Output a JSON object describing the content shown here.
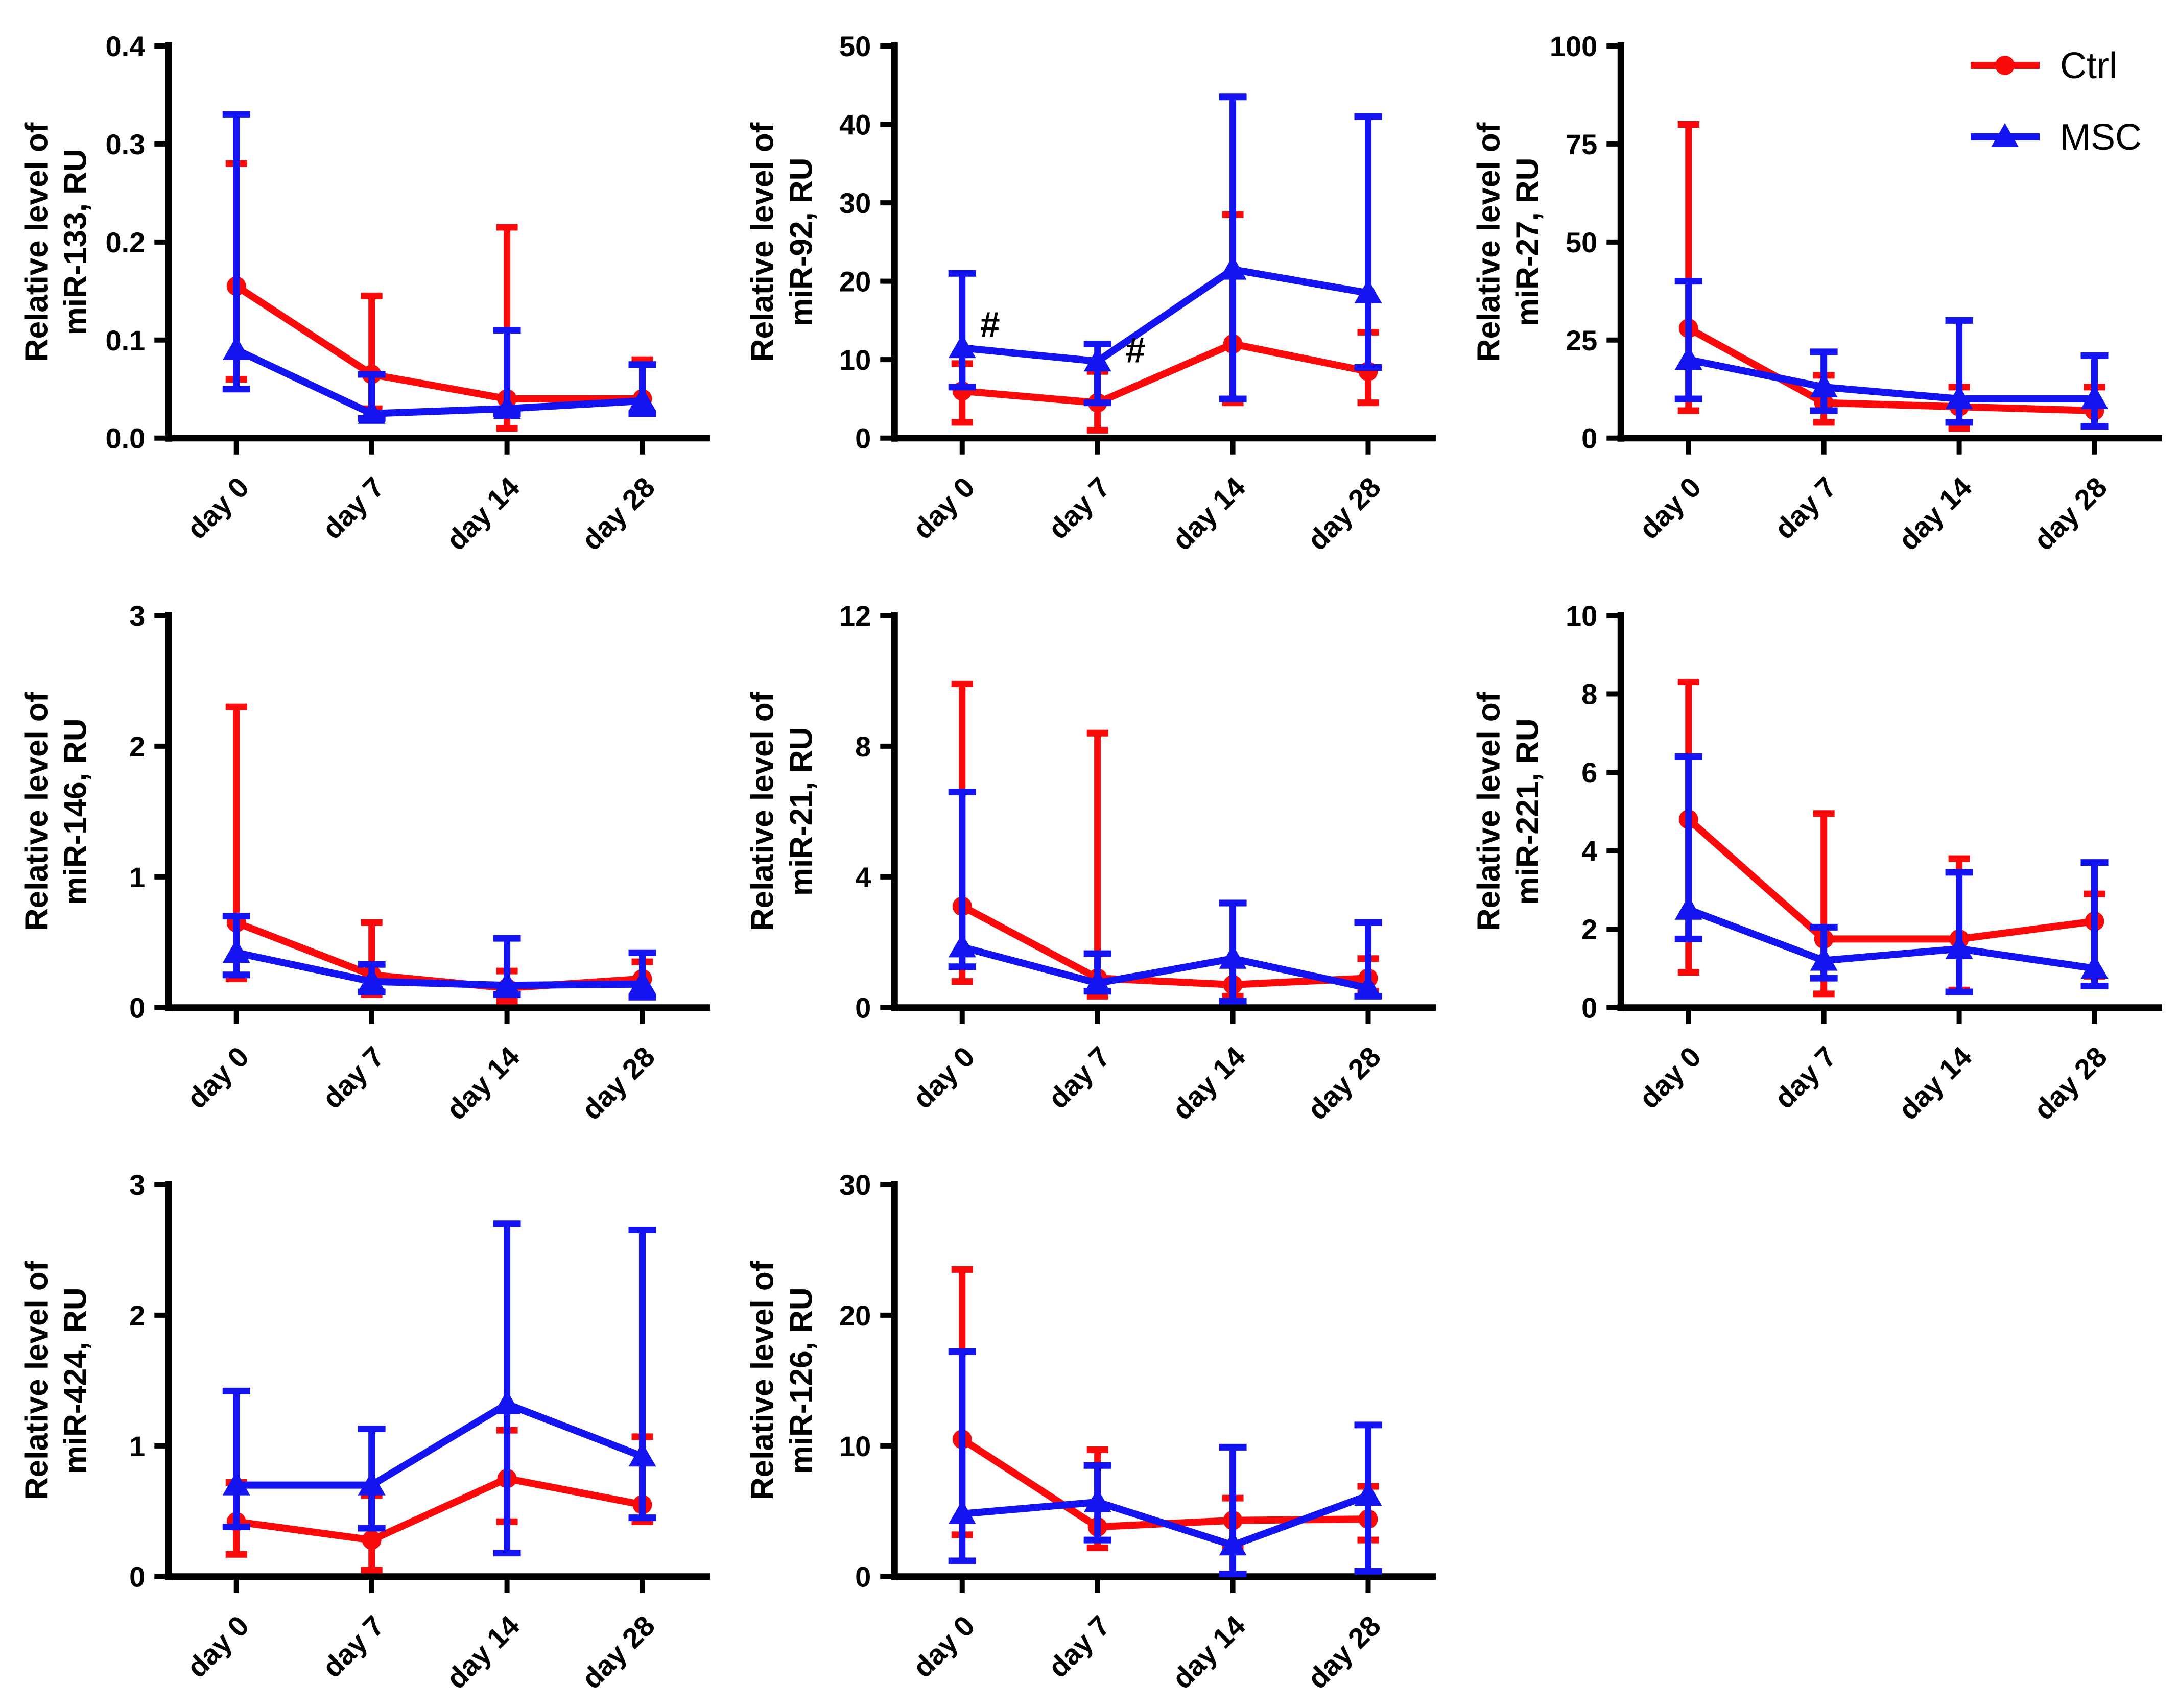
{
  "figure": {
    "background": "#ffffff",
    "rows": 3,
    "cols": 3
  },
  "colors": {
    "ctrl": "#fa0a0a",
    "msc": "#1414f0",
    "axis": "#000000",
    "annotation": "#000000"
  },
  "legend": {
    "location": "top-right of miR-27 panel",
    "items": [
      {
        "label": "Ctrl",
        "marker": "circle",
        "color_key": "ctrl"
      },
      {
        "label": "MSC",
        "marker": "triangle",
        "color_key": "msc"
      }
    ]
  },
  "categories": [
    "day 0",
    "day 7",
    "day 14",
    "day 28"
  ],
  "chart_data": [
    {
      "type": "line",
      "name": "miR-133",
      "ylabel_lines": [
        "Relative level of",
        "miR-133, RU"
      ],
      "ylim": [
        0,
        0.4
      ],
      "yticks": [
        0,
        0.1,
        0.2,
        0.3,
        0.4
      ],
      "ytick_labels": [
        "0.0",
        "0.1",
        "0.2",
        "0.3",
        "0.4"
      ],
      "legend": false,
      "series": [
        {
          "name": "Ctrl",
          "marker": "circle",
          "values": [
            0.155,
            0.065,
            0.04,
            0.04
          ],
          "err_lo": [
            0.06,
            0.03,
            0.01,
            0.03
          ],
          "err_hi": [
            0.28,
            0.145,
            0.215,
            0.08
          ]
        },
        {
          "name": "MSC",
          "marker": "triangle",
          "values": [
            0.09,
            0.025,
            0.03,
            0.038
          ],
          "err_lo": [
            0.05,
            0.02,
            0.025,
            0.025
          ],
          "err_hi": [
            0.33,
            0.065,
            0.11,
            0.075
          ]
        }
      ],
      "annotations": []
    },
    {
      "type": "line",
      "name": "miR-92",
      "ylabel_lines": [
        "Relative level of",
        "miR-92, RU"
      ],
      "ylim": [
        0,
        50
      ],
      "yticks": [
        0,
        10,
        20,
        30,
        40,
        50
      ],
      "ytick_labels": [
        "0",
        "10",
        "20",
        "30",
        "40",
        "50"
      ],
      "legend": false,
      "series": [
        {
          "name": "Ctrl",
          "marker": "circle",
          "values": [
            6,
            4.5,
            12,
            8.5
          ],
          "err_lo": [
            2,
            1,
            4.5,
            4.5
          ],
          "err_hi": [
            9.5,
            8.5,
            28.5,
            13.5
          ]
        },
        {
          "name": "MSC",
          "marker": "triangle",
          "values": [
            11.5,
            9.8,
            21.5,
            18.5
          ],
          "err_lo": [
            6.5,
            4.5,
            5,
            9
          ],
          "err_hi": [
            21,
            12,
            43.5,
            41
          ]
        }
      ],
      "annotations": [
        {
          "xi": 0,
          "y": 14.5,
          "dx": 35,
          "text": "#"
        },
        {
          "xi": 1,
          "y": 11.2,
          "dx": 55,
          "text": "#"
        }
      ]
    },
    {
      "type": "line",
      "name": "miR-27",
      "ylabel_lines": [
        "Relative level of",
        "miR-27, RU"
      ],
      "ylim": [
        0,
        100
      ],
      "yticks": [
        0,
        25,
        50,
        75,
        100
      ],
      "ytick_labels": [
        "0",
        "25",
        "50",
        "75",
        "100"
      ],
      "legend": true,
      "series": [
        {
          "name": "Ctrl",
          "marker": "circle",
          "values": [
            28,
            9,
            8,
            7
          ],
          "err_lo": [
            7,
            4,
            2.5,
            3
          ],
          "err_hi": [
            80,
            16,
            13,
            13
          ]
        },
        {
          "name": "MSC",
          "marker": "triangle",
          "values": [
            20,
            13,
            10,
            10
          ],
          "err_lo": [
            10,
            7,
            4,
            3
          ],
          "err_hi": [
            40,
            22,
            30,
            21
          ]
        }
      ],
      "annotations": []
    },
    {
      "type": "line",
      "name": "miR-146",
      "ylabel_lines": [
        "Relative level of",
        "miR-146, RU"
      ],
      "ylim": [
        0,
        3
      ],
      "yticks": [
        0,
        1,
        2,
        3
      ],
      "ytick_labels": [
        "0",
        "1",
        "2",
        "3"
      ],
      "legend": false,
      "series": [
        {
          "name": "Ctrl",
          "marker": "circle",
          "values": [
            0.65,
            0.25,
            0.15,
            0.22
          ],
          "err_lo": [
            0.22,
            0.1,
            0.05,
            0.1
          ],
          "err_hi": [
            2.3,
            0.65,
            0.28,
            0.35
          ]
        },
        {
          "name": "MSC",
          "marker": "triangle",
          "values": [
            0.42,
            0.2,
            0.17,
            0.18
          ],
          "err_lo": [
            0.25,
            0.12,
            0.1,
            0.08
          ],
          "err_hi": [
            0.7,
            0.33,
            0.53,
            0.42
          ]
        }
      ],
      "annotations": []
    },
    {
      "type": "line",
      "name": "miR-21",
      "ylabel_lines": [
        "Relative level of",
        "miR-21, RU"
      ],
      "ylim": [
        0,
        12
      ],
      "yticks": [
        0,
        4,
        8,
        12
      ],
      "ytick_labels": [
        "0",
        "4",
        "8",
        "12"
      ],
      "legend": false,
      "series": [
        {
          "name": "Ctrl",
          "marker": "circle",
          "values": [
            3.1,
            0.9,
            0.7,
            0.9
          ],
          "err_lo": [
            0.8,
            0.35,
            0.35,
            0.5
          ],
          "err_hi": [
            9.9,
            8.4,
            1.4,
            1.5
          ]
        },
        {
          "name": "MSC",
          "marker": "triangle",
          "values": [
            1.85,
            0.75,
            1.5,
            0.6
          ],
          "err_lo": [
            1.25,
            0.5,
            0.2,
            0.35
          ],
          "err_hi": [
            6.6,
            1.65,
            3.2,
            2.6
          ]
        }
      ],
      "annotations": []
    },
    {
      "type": "line",
      "name": "miR-221",
      "ylabel_lines": [
        "Relative level of",
        "miR-221, RU"
      ],
      "ylim": [
        0,
        10
      ],
      "yticks": [
        0,
        2,
        4,
        6,
        8,
        10
      ],
      "ytick_labels": [
        "0",
        "2",
        "4",
        "6",
        "8",
        "10"
      ],
      "legend": false,
      "series": [
        {
          "name": "Ctrl",
          "marker": "circle",
          "values": [
            4.8,
            1.75,
            1.75,
            2.2
          ],
          "err_lo": [
            0.9,
            0.35,
            0.45,
            0.8
          ],
          "err_hi": [
            8.3,
            4.95,
            3.8,
            2.9
          ]
        },
        {
          "name": "MSC",
          "marker": "triangle",
          "values": [
            2.5,
            1.2,
            1.5,
            1.0
          ],
          "err_lo": [
            1.75,
            0.75,
            0.4,
            0.55
          ],
          "err_hi": [
            6.4,
            2.05,
            3.45,
            3.7
          ]
        }
      ],
      "annotations": []
    },
    {
      "type": "line",
      "name": "miR-424",
      "ylabel_lines": [
        "Relative level of",
        "miR-424, RU"
      ],
      "ylim": [
        0,
        3
      ],
      "yticks": [
        0,
        1,
        2,
        3
      ],
      "ytick_labels": [
        "0",
        "1",
        "2",
        "3"
      ],
      "legend": false,
      "series": [
        {
          "name": "Ctrl",
          "marker": "circle",
          "values": [
            0.42,
            0.28,
            0.75,
            0.55
          ],
          "err_lo": [
            0.17,
            0.05,
            0.42,
            0.42
          ],
          "err_hi": [
            0.72,
            0.62,
            1.12,
            1.07
          ]
        },
        {
          "name": "MSC",
          "marker": "triangle",
          "values": [
            0.7,
            0.7,
            1.32,
            0.92
          ],
          "err_lo": [
            0.38,
            0.37,
            0.18,
            0.45
          ],
          "err_hi": [
            1.42,
            1.13,
            2.7,
            2.65
          ]
        }
      ],
      "annotations": []
    },
    {
      "type": "line",
      "name": "miR-126",
      "ylabel_lines": [
        "Relative level of",
        "miR-126, RU"
      ],
      "ylim": [
        0,
        30
      ],
      "yticks": [
        0,
        10,
        20,
        30
      ],
      "ytick_labels": [
        "0",
        "10",
        "20",
        "30"
      ],
      "legend": false,
      "series": [
        {
          "name": "Ctrl",
          "marker": "circle",
          "values": [
            10.5,
            3.8,
            4.3,
            4.4
          ],
          "err_lo": [
            3.2,
            2.2,
            2.2,
            2.8
          ],
          "err_hi": [
            23.5,
            9.7,
            6.0,
            6.9
          ]
        },
        {
          "name": "MSC",
          "marker": "triangle",
          "values": [
            4.8,
            5.7,
            2.4,
            6.2
          ],
          "err_lo": [
            1.2,
            2.8,
            0.2,
            0.4
          ],
          "err_hi": [
            17.2,
            8.5,
            9.9,
            11.6
          ]
        }
      ],
      "annotations": []
    }
  ]
}
